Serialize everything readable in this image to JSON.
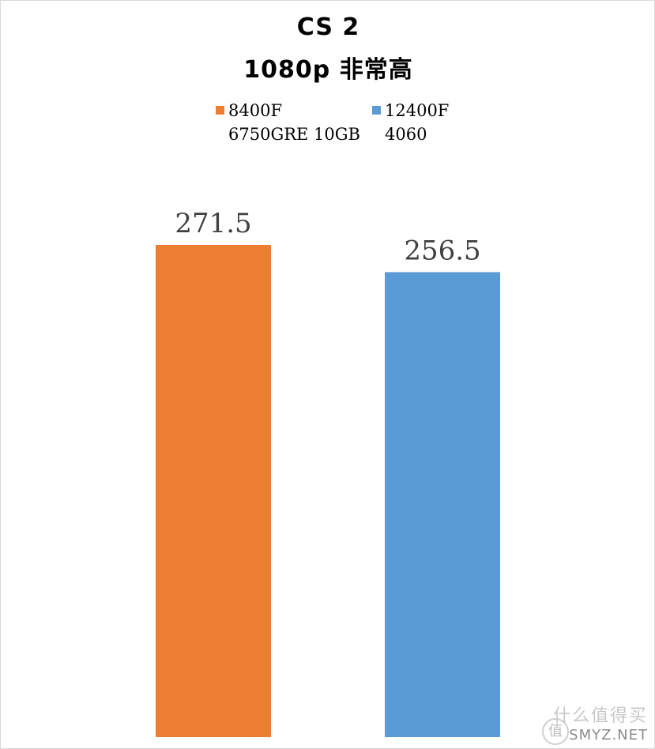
{
  "chart_data": {
    "type": "bar",
    "title": "CS 2",
    "subtitle": "1080p 非常高",
    "categories": [
      ""
    ],
    "series": [
      {
        "name": "8400F 6750GRE 10GB",
        "name_lines": [
          "8400F",
          "6750GRE 10GB"
        ],
        "color": "#ED7D31",
        "values": [
          271.5
        ]
      },
      {
        "name": "12400F 4060",
        "name_lines": [
          "12400F",
          "4060"
        ],
        "color": "#5B9BD5",
        "values": [
          256.5
        ]
      }
    ],
    "data_labels": [
      "271.5",
      "256.5"
    ],
    "ylim": [
      0,
      300
    ],
    "grid": false,
    "legend": "top",
    "xlabel": "",
    "ylabel": ""
  },
  "watermark": {
    "icon": "值",
    "text_cn": "什么值得买",
    "text_en": "SMYZ.NET"
  }
}
